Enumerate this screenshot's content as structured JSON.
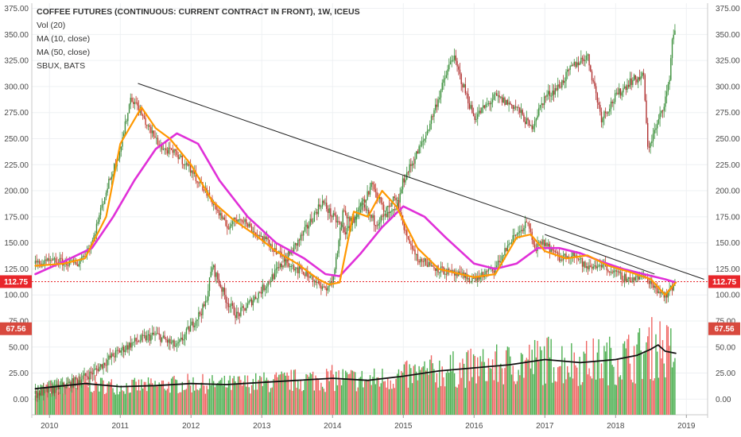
{
  "chart_data": {
    "type": "line",
    "title": "COFFEE FUTURES (CONTINUOUS: CURRENT CONTRACT IN FRONT), 1W, ICEUS",
    "legend": [
      "Vol (20)",
      "MA (10, close)",
      "MA (50, close)",
      "SBUX, BATS"
    ],
    "x_ticks": [
      "2010",
      "2011",
      "2012",
      "2013",
      "2014",
      "2015",
      "2016",
      "2017",
      "2018",
      "2019"
    ],
    "y_ticks": [
      0,
      25,
      50,
      75,
      100,
      125,
      150,
      175,
      200,
      225,
      250,
      275,
      300,
      325,
      350,
      375
    ],
    "y_tick_labels": [
      "0.00",
      "25.00",
      "50.00",
      "75.00",
      "100.00",
      "125.00",
      "150.00",
      "175.00",
      "200.00",
      "225.00",
      "250.00",
      "275.00",
      "300.00",
      "325.00",
      "350.00",
      "375.00"
    ],
    "ylim": [
      -15,
      380
    ],
    "xlim": [
      2009.75,
      2019.3
    ],
    "grid": true,
    "price_tags": {
      "coffee_last": "112.75",
      "sbux_last": "67.56"
    },
    "price_tag_colors": {
      "coffee": "#e8262b",
      "sbux": "#d8493e"
    },
    "colors": {
      "coffee_up": "#3d8b3d",
      "coffee_down": "#c0392b",
      "sbux_up": "#3a8f3a",
      "sbux_down": "#b03030",
      "ma10": "#ff9800",
      "ma50": "#e030d8",
      "vol_ma": "#111111",
      "vol_up": "#4caf50",
      "vol_down": "#ef6461",
      "trendline": "#222222",
      "price_line": "#e8262b"
    },
    "last_price_line": 112.75,
    "series": [
      {
        "name": "COFFEE FUTURES (CONTINUOUS: CURRENT CONTRACT IN FRONT), 1W, ICEUS",
        "x": [
          2009.8,
          2010.1,
          2010.4,
          2010.6,
          2010.8,
          2011.0,
          2011.15,
          2011.25,
          2011.4,
          2011.6,
          2011.8,
          2012.0,
          2012.3,
          2012.5,
          2012.7,
          2012.9,
          2013.1,
          2013.3,
          2013.5,
          2013.7,
          2013.85,
          2014.0,
          2014.15,
          2014.25,
          2014.4,
          2014.55,
          2014.75,
          2014.9,
          2015.0,
          2015.2,
          2015.5,
          2015.7,
          2016.0,
          2016.3,
          2016.5,
          2016.75,
          2016.85,
          2017.0,
          2017.2,
          2017.4,
          2017.6,
          2017.8,
          2018.0,
          2018.2,
          2018.4,
          2018.6,
          2018.7,
          2018.75,
          2018.85
        ],
        "values": [
          130,
          132,
          130,
          150,
          200,
          240,
          290,
          280,
          260,
          240,
          235,
          220,
          190,
          165,
          175,
          160,
          150,
          135,
          125,
          118,
          105,
          112,
          180,
          170,
          185,
          205,
          180,
          195,
          165,
          135,
          125,
          120,
          115,
          125,
          150,
          170,
          145,
          150,
          135,
          140,
          125,
          130,
          120,
          115,
          118,
          105,
          100,
          102,
          112.75
        ]
      },
      {
        "name": "SBUX, BATS",
        "x": [
          2009.8,
          2010.0,
          2010.3,
          2010.6,
          2010.9,
          2011.2,
          2011.5,
          2011.8,
          2012.0,
          2012.2,
          2012.3,
          2012.5,
          2012.65,
          2012.8,
          2013.0,
          2013.3,
          2013.6,
          2013.85,
          2014.0,
          2014.2,
          2014.4,
          2014.6,
          2014.9,
          2015.0,
          2015.3,
          2015.5,
          2015.7,
          2016.0,
          2016.3,
          2016.6,
          2016.8,
          2017.0,
          2017.2,
          2017.4,
          2017.6,
          2017.8,
          2018.0,
          2018.2,
          2018.4,
          2018.45,
          2018.6,
          2018.75,
          2018.8,
          2018.85
        ],
        "values": [
          5,
          8,
          15,
          25,
          42,
          55,
          62,
          50,
          70,
          90,
          128,
          95,
          80,
          90,
          105,
          130,
          160,
          190,
          175,
          160,
          185,
          170,
          180,
          210,
          250,
          290,
          330,
          270,
          290,
          280,
          260,
          290,
          300,
          320,
          330,
          270,
          290,
          305,
          310,
          240,
          265,
          300,
          345,
          360
        ]
      },
      {
        "name": "MA (10, close)",
        "x": [
          2009.8,
          2010.2,
          2010.5,
          2010.8,
          2011.0,
          2011.3,
          2011.5,
          2011.7,
          2012.0,
          2012.3,
          2012.6,
          2012.9,
          2013.2,
          2013.5,
          2013.8,
          2013.95,
          2014.1,
          2014.3,
          2014.5,
          2014.7,
          2014.9,
          2015.2,
          2015.5,
          2016.0,
          2016.3,
          2016.6,
          2016.8,
          2017.0,
          2017.3,
          2017.6,
          2017.9,
          2018.2,
          2018.5,
          2018.7,
          2018.85
        ],
        "values": [
          128,
          130,
          135,
          175,
          245,
          280,
          260,
          250,
          225,
          190,
          172,
          158,
          142,
          130,
          115,
          110,
          112,
          180,
          175,
          200,
          185,
          145,
          125,
          117,
          120,
          155,
          158,
          142,
          135,
          138,
          128,
          122,
          115,
          100,
          112
        ]
      },
      {
        "name": "MA (50, close)",
        "x": [
          2009.8,
          2010.2,
          2010.6,
          2010.9,
          2011.2,
          2011.5,
          2011.8,
          2012.1,
          2012.4,
          2012.8,
          2013.2,
          2013.6,
          2013.9,
          2014.1,
          2014.4,
          2014.7,
          2015.0,
          2015.3,
          2015.6,
          2016.0,
          2016.3,
          2016.6,
          2016.9,
          2017.2,
          2017.5,
          2017.8,
          2018.1,
          2018.4,
          2018.7,
          2018.85
        ],
        "values": [
          120,
          132,
          145,
          175,
          210,
          240,
          255,
          245,
          210,
          175,
          150,
          135,
          120,
          118,
          140,
          165,
          185,
          175,
          155,
          130,
          125,
          130,
          145,
          145,
          140,
          132,
          125,
          120,
          115,
          112
        ]
      },
      {
        "name": "Vol (20)",
        "x": [
          2009.8,
          2010.5,
          2011.0,
          2011.5,
          2012.0,
          2012.5,
          2013.0,
          2013.5,
          2014.0,
          2014.5,
          2015.0,
          2015.5,
          2016.0,
          2016.5,
          2017.0,
          2017.5,
          2018.0,
          2018.3,
          2018.5,
          2018.6,
          2018.7,
          2018.85
        ],
        "values": [
          10,
          15,
          12,
          13,
          15,
          14,
          16,
          18,
          20,
          18,
          22,
          27,
          30,
          33,
          38,
          35,
          38,
          42,
          48,
          52,
          46,
          44
        ]
      }
    ],
    "trendlines": [
      {
        "x": [
          2011.25,
          2019.25
        ],
        "values": [
          303,
          115
        ]
      },
      {
        "x": [
          2017.0,
          2018.55
        ],
        "values": [
          158,
          120
        ]
      }
    ]
  }
}
